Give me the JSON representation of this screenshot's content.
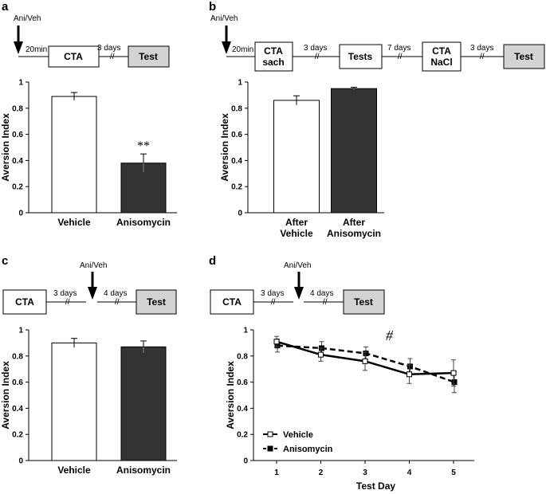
{
  "panels": {
    "a": {
      "label": "a",
      "protocol": {
        "drug": "Ani/Veh",
        "interval1": "20min",
        "box1": "CTA",
        "interval2": "3 days",
        "box2": "Test"
      }
    },
    "b": {
      "label": "b",
      "protocol": {
        "drug": "Ani/Veh",
        "interval1": "20min",
        "box1_line1": "CTA",
        "box1_line2": "sach",
        "interval2": "3 days",
        "box2": "Tests",
        "interval3": "7 days",
        "box3_line1": "CTA",
        "box3_line2": "NaCl",
        "interval4": "3 days",
        "box4": "Test"
      }
    },
    "c": {
      "label": "c",
      "protocol": {
        "box1": "CTA",
        "interval1": "3 days",
        "drug": "Ani/Veh",
        "interval2": "4 days",
        "box2": "Test"
      }
    },
    "d": {
      "label": "d",
      "protocol": {
        "box1": "CTA",
        "interval1": "3 days",
        "drug": "Ani/Veh",
        "interval2": "4 days",
        "box2": "Test"
      }
    }
  },
  "chart_data": [
    {
      "id": "a",
      "type": "bar",
      "categories": [
        "Vehicle",
        "Anisomycin"
      ],
      "values": [
        0.89,
        0.38
      ],
      "errors": [
        0.03,
        0.07
      ],
      "colors": [
        "#ffffff",
        "#333333"
      ],
      "ylabel": "Aversion Index",
      "ylim": [
        0,
        1
      ],
      "yticks": [
        "0",
        "0.2",
        "0.4",
        "0.6",
        "0.8",
        "1"
      ],
      "annotations": [
        {
          "text": "**",
          "category": "Anisomycin"
        }
      ]
    },
    {
      "id": "b",
      "type": "bar",
      "categories": [
        [
          "After",
          "Vehicle"
        ],
        [
          "After",
          "Anisomycin"
        ]
      ],
      "values": [
        0.86,
        0.95
      ],
      "errors": [
        0.035,
        0.01
      ],
      "colors": [
        "#ffffff",
        "#333333"
      ],
      "ylabel": "Aversion Index",
      "ylim": [
        0,
        1
      ],
      "yticks": [
        "0",
        "0.2",
        "0.4",
        "0.6",
        "0.8",
        "1"
      ]
    },
    {
      "id": "c",
      "type": "bar",
      "categories": [
        "Vehicle",
        "Anisomycin"
      ],
      "values": [
        0.9,
        0.87
      ],
      "errors": [
        0.035,
        0.045
      ],
      "colors": [
        "#ffffff",
        "#333333"
      ],
      "ylabel": "Aversion Index",
      "ylim": [
        0,
        1
      ],
      "yticks": [
        "0",
        "0.2",
        "0.4",
        "0.6",
        "0.8",
        "1"
      ]
    },
    {
      "id": "d",
      "type": "line",
      "x": [
        1,
        2,
        3,
        4,
        5
      ],
      "xticks": [
        "1",
        "2",
        "3",
        "4",
        "5"
      ],
      "xlabel": "Test Day",
      "ylabel": "Aversion Index",
      "ylim": [
        0,
        1
      ],
      "yticks": [
        "0",
        "0.2",
        "0.4",
        "0.6",
        "0.8",
        "1"
      ],
      "series": [
        {
          "name": "Vehicle",
          "values": [
            0.91,
            0.81,
            0.76,
            0.66,
            0.67
          ],
          "errors": [
            0.04,
            0.05,
            0.07,
            0.07,
            0.1
          ],
          "marker": "open-square",
          "line": "solid"
        },
        {
          "name": "Anisomycin",
          "values": [
            0.88,
            0.86,
            0.82,
            0.72,
            0.6
          ],
          "errors": [
            0.05,
            0.05,
            0.05,
            0.06,
            0.08
          ],
          "marker": "filled-square",
          "line": "dashed"
        }
      ],
      "legend": "bottom-left",
      "annotations": [
        {
          "text": "#"
        }
      ]
    }
  ]
}
